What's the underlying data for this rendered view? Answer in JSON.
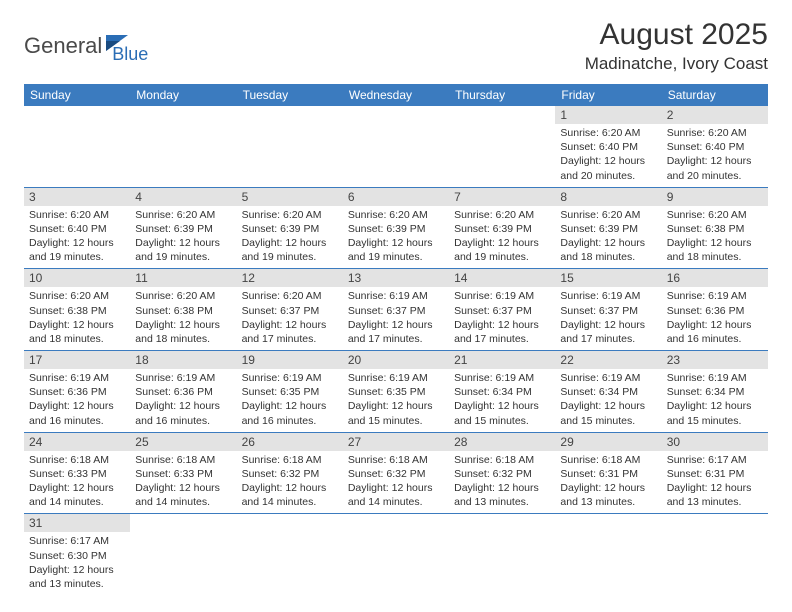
{
  "logo": {
    "general": "General",
    "blue": "Blue"
  },
  "title": "August 2025",
  "location": "Madinatche, Ivory Coast",
  "colors": {
    "header_bg": "#3b7bbf",
    "header_text": "#ffffff",
    "daynum_bg": "#e3e3e3",
    "border": "#3b7bbf",
    "logo_gray": "#4a4a4a",
    "logo_blue": "#2a6db5"
  },
  "day_headers": [
    "Sunday",
    "Monday",
    "Tuesday",
    "Wednesday",
    "Thursday",
    "Friday",
    "Saturday"
  ],
  "weeks": [
    [
      null,
      null,
      null,
      null,
      null,
      {
        "n": "1",
        "sr": "6:20 AM",
        "ss": "6:40 PM",
        "dh": "12",
        "dm": "20"
      },
      {
        "n": "2",
        "sr": "6:20 AM",
        "ss": "6:40 PM",
        "dh": "12",
        "dm": "20"
      }
    ],
    [
      {
        "n": "3",
        "sr": "6:20 AM",
        "ss": "6:40 PM",
        "dh": "12",
        "dm": "19"
      },
      {
        "n": "4",
        "sr": "6:20 AM",
        "ss": "6:39 PM",
        "dh": "12",
        "dm": "19"
      },
      {
        "n": "5",
        "sr": "6:20 AM",
        "ss": "6:39 PM",
        "dh": "12",
        "dm": "19"
      },
      {
        "n": "6",
        "sr": "6:20 AM",
        "ss": "6:39 PM",
        "dh": "12",
        "dm": "19"
      },
      {
        "n": "7",
        "sr": "6:20 AM",
        "ss": "6:39 PM",
        "dh": "12",
        "dm": "19"
      },
      {
        "n": "8",
        "sr": "6:20 AM",
        "ss": "6:39 PM",
        "dh": "12",
        "dm": "18"
      },
      {
        "n": "9",
        "sr": "6:20 AM",
        "ss": "6:38 PM",
        "dh": "12",
        "dm": "18"
      }
    ],
    [
      {
        "n": "10",
        "sr": "6:20 AM",
        "ss": "6:38 PM",
        "dh": "12",
        "dm": "18"
      },
      {
        "n": "11",
        "sr": "6:20 AM",
        "ss": "6:38 PM",
        "dh": "12",
        "dm": "18"
      },
      {
        "n": "12",
        "sr": "6:20 AM",
        "ss": "6:37 PM",
        "dh": "12",
        "dm": "17"
      },
      {
        "n": "13",
        "sr": "6:19 AM",
        "ss": "6:37 PM",
        "dh": "12",
        "dm": "17"
      },
      {
        "n": "14",
        "sr": "6:19 AM",
        "ss": "6:37 PM",
        "dh": "12",
        "dm": "17"
      },
      {
        "n": "15",
        "sr": "6:19 AM",
        "ss": "6:37 PM",
        "dh": "12",
        "dm": "17"
      },
      {
        "n": "16",
        "sr": "6:19 AM",
        "ss": "6:36 PM",
        "dh": "12",
        "dm": "16"
      }
    ],
    [
      {
        "n": "17",
        "sr": "6:19 AM",
        "ss": "6:36 PM",
        "dh": "12",
        "dm": "16"
      },
      {
        "n": "18",
        "sr": "6:19 AM",
        "ss": "6:36 PM",
        "dh": "12",
        "dm": "16"
      },
      {
        "n": "19",
        "sr": "6:19 AM",
        "ss": "6:35 PM",
        "dh": "12",
        "dm": "16"
      },
      {
        "n": "20",
        "sr": "6:19 AM",
        "ss": "6:35 PM",
        "dh": "12",
        "dm": "15"
      },
      {
        "n": "21",
        "sr": "6:19 AM",
        "ss": "6:34 PM",
        "dh": "12",
        "dm": "15"
      },
      {
        "n": "22",
        "sr": "6:19 AM",
        "ss": "6:34 PM",
        "dh": "12",
        "dm": "15"
      },
      {
        "n": "23",
        "sr": "6:19 AM",
        "ss": "6:34 PM",
        "dh": "12",
        "dm": "15"
      }
    ],
    [
      {
        "n": "24",
        "sr": "6:18 AM",
        "ss": "6:33 PM",
        "dh": "12",
        "dm": "14"
      },
      {
        "n": "25",
        "sr": "6:18 AM",
        "ss": "6:33 PM",
        "dh": "12",
        "dm": "14"
      },
      {
        "n": "26",
        "sr": "6:18 AM",
        "ss": "6:32 PM",
        "dh": "12",
        "dm": "14"
      },
      {
        "n": "27",
        "sr": "6:18 AM",
        "ss": "6:32 PM",
        "dh": "12",
        "dm": "14"
      },
      {
        "n": "28",
        "sr": "6:18 AM",
        "ss": "6:32 PM",
        "dh": "12",
        "dm": "13"
      },
      {
        "n": "29",
        "sr": "6:18 AM",
        "ss": "6:31 PM",
        "dh": "12",
        "dm": "13"
      },
      {
        "n": "30",
        "sr": "6:17 AM",
        "ss": "6:31 PM",
        "dh": "12",
        "dm": "13"
      }
    ],
    [
      {
        "n": "31",
        "sr": "6:17 AM",
        "ss": "6:30 PM",
        "dh": "12",
        "dm": "13"
      },
      null,
      null,
      null,
      null,
      null,
      null
    ]
  ]
}
